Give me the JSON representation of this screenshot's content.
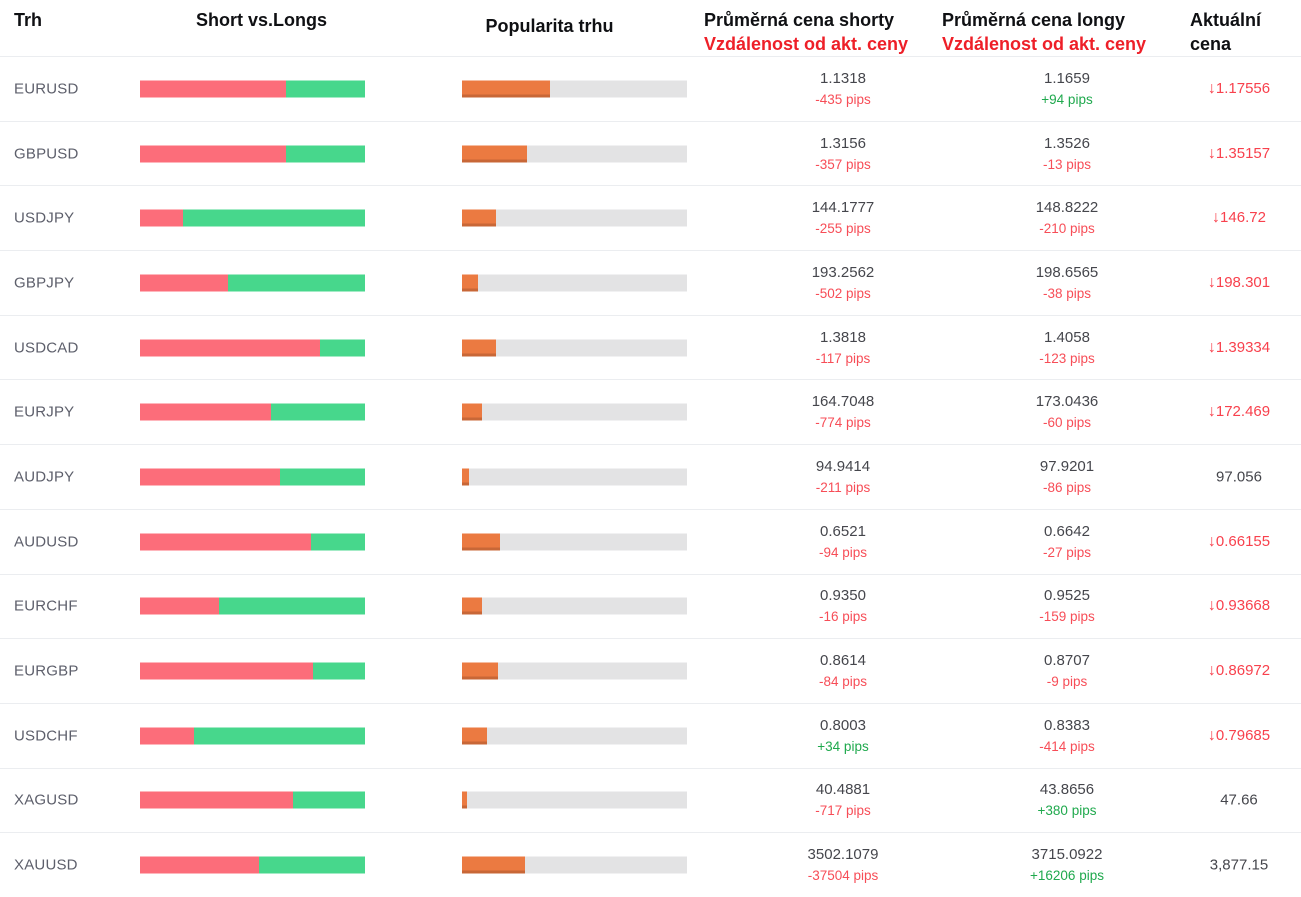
{
  "header": {
    "col_market": "Trh",
    "col_short_vs_longs": "Short vs.Longs",
    "col_popularity": "Popularita trhu",
    "col_avg_short_price": "Průměrná cena shorty",
    "col_short_distance": "Vzdálenost od akt. ceny",
    "col_avg_long_price": "Průměrná cena longy",
    "col_long_distance": "Vzdálenost od akt. ceny",
    "col_current_price_line1": "Aktuální",
    "col_current_price_line2": "cena",
    "down_arrow_icon": "↓"
  },
  "colors": {
    "short-bar": "#fc6d7a",
    "long-bar": "#47d78c",
    "popularity-bar": "#eb7a41",
    "track": "#e3e3e4",
    "separator": "#ebedf0",
    "header-red": "#ee1f28",
    "pips-down": "#f74d57",
    "pips-up": "#1fa94d",
    "price-down": "#f8414d",
    "text-dark": "#45464c",
    "symbol-text": "#5d5f6b"
  },
  "rows": [
    {
      "symbol": "EURUSD",
      "short_pct": 65,
      "long_pct": 35,
      "popularity_pct": 39,
      "short_price": "1.1318",
      "short_pips": "-435 pips",
      "long_price": "1.1659",
      "long_pips": "+94 pips",
      "current_price": "1.17556",
      "current_direction": "down"
    },
    {
      "symbol": "GBPUSD",
      "short_pct": 65,
      "long_pct": 35,
      "popularity_pct": 29,
      "short_price": "1.3156",
      "short_pips": "-357 pips",
      "long_price": "1.3526",
      "long_pips": "-13 pips",
      "current_price": "1.35157",
      "current_direction": "down"
    },
    {
      "symbol": "USDJPY",
      "short_pct": 19,
      "long_pct": 81,
      "popularity_pct": 15,
      "short_price": "144.1777",
      "short_pips": "-255 pips",
      "long_price": "148.8222",
      "long_pips": "-210 pips",
      "current_price": "146.72",
      "current_direction": "down"
    },
    {
      "symbol": "GBPJPY",
      "short_pct": 39,
      "long_pct": 61,
      "popularity_pct": 7,
      "short_price": "193.2562",
      "short_pips": "-502 pips",
      "long_price": "198.6565",
      "long_pips": "-38 pips",
      "current_price": "198.301",
      "current_direction": "down"
    },
    {
      "symbol": "USDCAD",
      "short_pct": 80,
      "long_pct": 20,
      "popularity_pct": 15,
      "short_price": "1.3818",
      "short_pips": "-117 pips",
      "long_price": "1.4058",
      "long_pips": "-123 pips",
      "current_price": "1.39334",
      "current_direction": "down"
    },
    {
      "symbol": "EURJPY",
      "short_pct": 58,
      "long_pct": 42,
      "popularity_pct": 9,
      "short_price": "164.7048",
      "short_pips": "-774 pips",
      "long_price": "173.0436",
      "long_pips": "-60 pips",
      "current_price": "172.469",
      "current_direction": "down"
    },
    {
      "symbol": "AUDJPY",
      "short_pct": 62,
      "long_pct": 38,
      "popularity_pct": 3,
      "short_price": "94.9414",
      "short_pips": "-211 pips",
      "long_price": "97.9201",
      "long_pips": "-86 pips",
      "current_price": "97.056",
      "current_direction": "none"
    },
    {
      "symbol": "AUDUSD",
      "short_pct": 76,
      "long_pct": 24,
      "popularity_pct": 17,
      "short_price": "0.6521",
      "short_pips": "-94 pips",
      "long_price": "0.6642",
      "long_pips": "-27 pips",
      "current_price": "0.66155",
      "current_direction": "down"
    },
    {
      "symbol": "EURCHF",
      "short_pct": 35,
      "long_pct": 65,
      "popularity_pct": 9,
      "short_price": "0.9350",
      "short_pips": "-16 pips",
      "long_price": "0.9525",
      "long_pips": "-159 pips",
      "current_price": "0.93668",
      "current_direction": "down"
    },
    {
      "symbol": "EURGBP",
      "short_pct": 77,
      "long_pct": 23,
      "popularity_pct": 16,
      "short_price": "0.8614",
      "short_pips": "-84 pips",
      "long_price": "0.8707",
      "long_pips": "-9 pips",
      "current_price": "0.86972",
      "current_direction": "down"
    },
    {
      "symbol": "USDCHF",
      "short_pct": 24,
      "long_pct": 76,
      "popularity_pct": 11,
      "short_price": "0.8003",
      "short_pips": "+34 pips",
      "long_price": "0.8383",
      "long_pips": "-414 pips",
      "current_price": "0.79685",
      "current_direction": "down"
    },
    {
      "symbol": "XAGUSD",
      "short_pct": 68,
      "long_pct": 32,
      "popularity_pct": 2,
      "short_price": "40.4881",
      "short_pips": "-717 pips",
      "long_price": "43.8656",
      "long_pips": "+380 pips",
      "current_price": "47.66",
      "current_direction": "none"
    },
    {
      "symbol": "XAUUSD",
      "short_pct": 53,
      "long_pct": 47,
      "popularity_pct": 28,
      "short_price": "3502.1079",
      "short_pips": "-37504 pips",
      "long_price": "3715.0922",
      "long_pips": "+16206 pips",
      "current_price": "3,877.15",
      "current_direction": "none"
    }
  ]
}
